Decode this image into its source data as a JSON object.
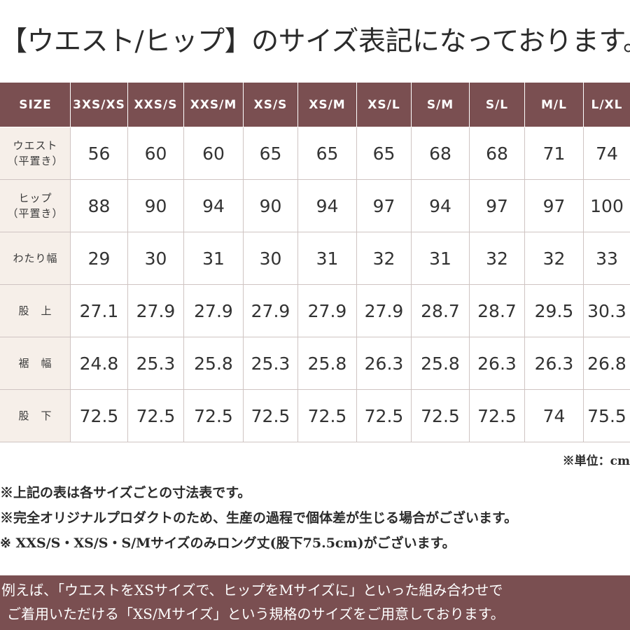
{
  "title": "【ウエスト/ヒップ】のサイズ表記になっております。",
  "table": {
    "header": [
      "SIZE",
      "3XS/XS",
      "XXS/S",
      "XXS/M",
      "XS/S",
      "XS/M",
      "XS/L",
      "S/M",
      "S/L",
      "M/L",
      "L/XL"
    ],
    "rows": [
      {
        "label": "ウエスト",
        "sublabel": "（平置き）",
        "values": [
          "56",
          "60",
          "60",
          "65",
          "65",
          "65",
          "68",
          "68",
          "71",
          "74"
        ]
      },
      {
        "label": "ヒップ",
        "sublabel": "（平置き）",
        "values": [
          "88",
          "90",
          "94",
          "90",
          "94",
          "97",
          "94",
          "97",
          "97",
          "100"
        ]
      },
      {
        "label": "わたり幅",
        "sublabel": "",
        "values": [
          "29",
          "30",
          "31",
          "30",
          "31",
          "32",
          "31",
          "32",
          "32",
          "33"
        ]
      },
      {
        "label": "股　上",
        "sublabel": "",
        "values": [
          "27.1",
          "27.9",
          "27.9",
          "27.9",
          "27.9",
          "27.9",
          "28.7",
          "28.7",
          "29.5",
          "30.3"
        ]
      },
      {
        "label": "裾　幅",
        "sublabel": "",
        "values": [
          "24.8",
          "25.3",
          "25.8",
          "25.3",
          "25.8",
          "26.3",
          "25.8",
          "26.3",
          "26.3",
          "26.8"
        ]
      },
      {
        "label": "股　下",
        "sublabel": "",
        "values": [
          "72.5",
          "72.5",
          "72.5",
          "72.5",
          "72.5",
          "72.5",
          "72.5",
          "72.5",
          "74",
          "75.5"
        ]
      }
    ]
  },
  "unit_note": "※単位：cm",
  "notes": [
    "※上記の表は各サイズごとの寸法表です。",
    "※完全オリジナルプロダクトのため、生産の過程で個体差が生じる場合がございます。",
    "※ XXS/S・XS/S・S/Mサイズのみロング丈(股下75.5cm)がございます。"
  ],
  "banner": {
    "line1": "例えば、「ウエストをXSサイズで、ヒップをMサイズに」といった組み合わせで",
    "line2": "ご着用いただける「XS/Mサイズ」という規格のサイズをご用意しております。"
  },
  "colors": {
    "accent": "#7a4f51",
    "label_bg": "#f6efe9",
    "border": "#cfc4c2"
  }
}
